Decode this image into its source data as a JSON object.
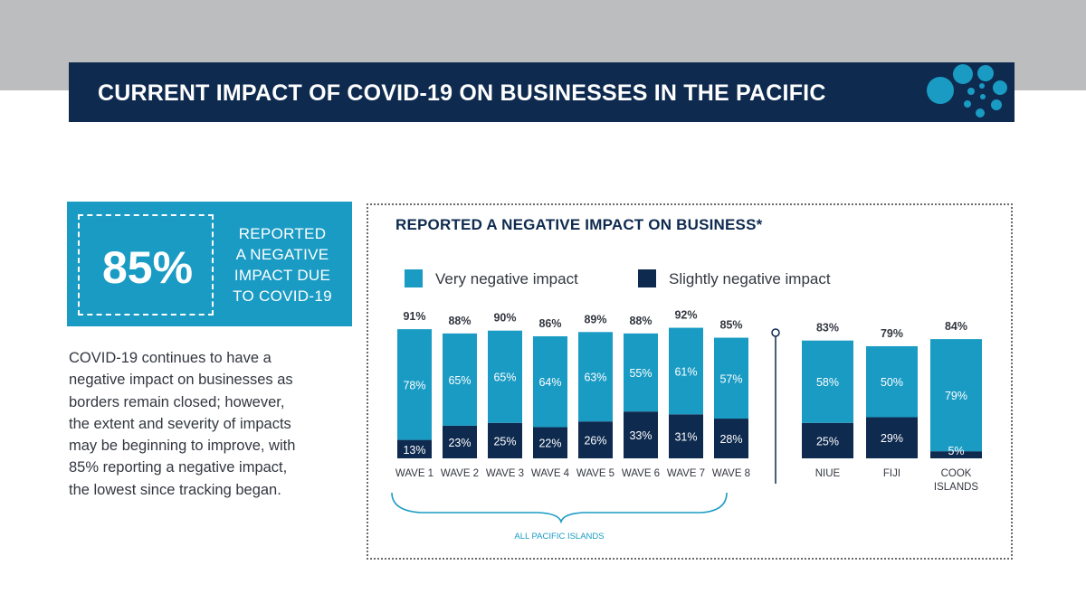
{
  "header": {
    "title": "CURRENT IMPACT OF COVID-19 ON BUSINESSES IN THE PACIFIC"
  },
  "stat": {
    "value": "85%",
    "label_lines": [
      "REPORTED",
      "A NEGATIVE",
      "IMPACT DUE",
      "TO COVID-19"
    ]
  },
  "description_lines": [
    "COVID-19 continues to have a",
    "negative impact on businesses as",
    "borders remain closed; however,",
    "the extent and severity of impacts",
    "may be beginning to improve, with",
    "85% reporting a negative impact,",
    "the lowest since tracking began."
  ],
  "colors": {
    "navy": "#0e2a4f",
    "teal": "#1a9bc4",
    "very_negative": "#1a9bc4",
    "slightly_negative": "#0e2a4f"
  },
  "chart_data": {
    "type": "bar",
    "stacked": true,
    "title": "REPORTED A NEGATIVE IMPACT ON BUSINESS*",
    "legend": [
      "Very negative impact",
      "Slightly negative impact"
    ],
    "legend_position": "top",
    "groups": [
      {
        "label": "ALL PACIFIC ISLANDS",
        "categories": [
          "WAVE 1",
          "WAVE 2",
          "WAVE 3",
          "WAVE 4",
          "WAVE 5",
          "WAVE 6",
          "WAVE 7",
          "WAVE 8"
        ],
        "category_labels": [
          [
            "WAVE 1"
          ],
          [
            "WAVE 2"
          ],
          [
            "WAVE 3"
          ],
          [
            "WAVE 4"
          ],
          [
            "WAVE 5"
          ],
          [
            "WAVE 6"
          ],
          [
            "WAVE 7"
          ],
          [
            "WAVE 8"
          ]
        ],
        "totals": [
          "91%",
          "88%",
          "90%",
          "86%",
          "89%",
          "88%",
          "92%",
          "85%"
        ],
        "series": [
          {
            "name": "Very negative impact",
            "values": [
              78,
              65,
              65,
              64,
              63,
              55,
              61,
              57
            ],
            "labels": [
              "78%",
              "65%",
              "65%",
              "64%",
              "63%",
              "55%",
              "61%",
              "57%"
            ]
          },
          {
            "name": "Slightly negative impact",
            "values": [
              13,
              23,
              25,
              22,
              26,
              33,
              31,
              28
            ],
            "labels": [
              "13%",
              "23%",
              "25%",
              "22%",
              "26%",
              "33%",
              "31%",
              "28%"
            ]
          }
        ]
      },
      {
        "label": "",
        "categories": [
          "NIUE",
          "FIJI",
          "COOK ISLANDS"
        ],
        "category_labels": [
          [
            "NIUE"
          ],
          [
            "FIJI"
          ],
          [
            "COOK",
            "ISLANDS"
          ]
        ],
        "totals": [
          "83%",
          "79%",
          "84%"
        ],
        "series": [
          {
            "name": "Very negative impact",
            "values": [
              58,
              50,
              79
            ],
            "labels": [
              "58%",
              "50%",
              "79%"
            ]
          },
          {
            "name": "Slightly negative impact",
            "values": [
              25,
              29,
              5
            ],
            "labels": [
              "25%",
              "29%",
              "5%"
            ]
          }
        ]
      }
    ],
    "ylim": [
      0,
      100
    ],
    "grid": false
  }
}
